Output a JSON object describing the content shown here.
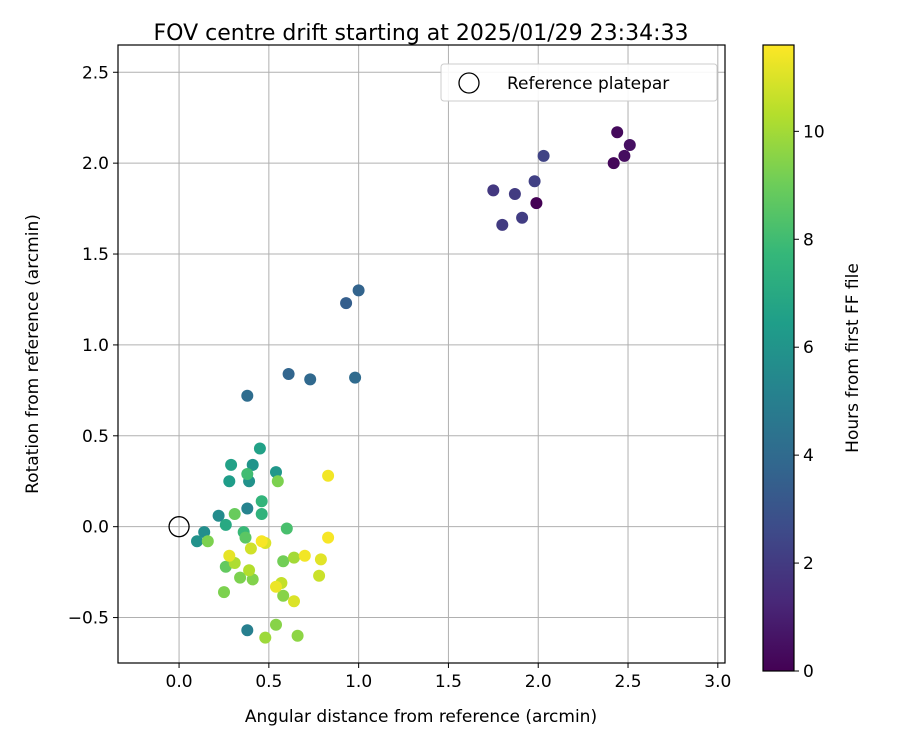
{
  "chart_data": {
    "type": "scatter",
    "title": "FOV centre drift starting at 2025/01/29 23:34:33",
    "xlabel": "Angular distance from reference (arcmin)",
    "ylabel": "Rotation from reference (arcmin)",
    "xlim": [
      -0.34,
      3.04
    ],
    "ylim": [
      -0.75,
      2.65
    ],
    "xticks": [
      "0.0",
      "0.5",
      "1.0",
      "1.5",
      "2.0",
      "2.5",
      "3.0"
    ],
    "xtick_values": [
      0,
      0.5,
      1,
      1.5,
      2,
      2.5,
      3
    ],
    "yticks": [
      "−0.5",
      "0.0",
      "0.5",
      "1.0",
      "1.5",
      "2.0",
      "2.5"
    ],
    "ytick_values": [
      -0.5,
      0,
      0.5,
      1,
      1.5,
      2,
      2.5
    ],
    "grid": true,
    "legend": {
      "position": "upper right",
      "entries": [
        "Reference platepar"
      ]
    },
    "colorbar": {
      "label": "Hours from first FF file",
      "colormap": "viridis",
      "range": [
        0,
        11.6
      ],
      "ticks": [
        "0",
        "2",
        "4",
        "6",
        "8",
        "10"
      ],
      "tick_values": [
        0,
        2,
        4,
        6,
        8,
        10
      ]
    },
    "reference_point": {
      "x": 0,
      "y": 0
    },
    "points": [
      {
        "x": 1.99,
        "y": 1.78,
        "h": 0.0
      },
      {
        "x": 2.42,
        "y": 2.0,
        "h": 0.2
      },
      {
        "x": 2.44,
        "y": 2.17,
        "h": 0.3
      },
      {
        "x": 2.48,
        "y": 2.04,
        "h": 0.4
      },
      {
        "x": 2.51,
        "y": 2.1,
        "h": 0.5
      },
      {
        "x": 1.75,
        "y": 1.85,
        "h": 1.9
      },
      {
        "x": 1.8,
        "y": 1.66,
        "h": 2.0
      },
      {
        "x": 1.87,
        "y": 1.83,
        "h": 2.0
      },
      {
        "x": 1.91,
        "y": 1.7,
        "h": 2.1
      },
      {
        "x": 1.98,
        "y": 1.9,
        "h": 2.2
      },
      {
        "x": 2.03,
        "y": 2.04,
        "h": 2.3
      },
      {
        "x": 0.93,
        "y": 1.23,
        "h": 3.5
      },
      {
        "x": 1.0,
        "y": 1.3,
        "h": 3.7
      },
      {
        "x": 0.61,
        "y": 0.84,
        "h": 3.8
      },
      {
        "x": 0.73,
        "y": 0.81,
        "h": 3.9
      },
      {
        "x": 0.98,
        "y": 0.82,
        "h": 4.0
      },
      {
        "x": 0.38,
        "y": 0.72,
        "h": 4.1
      },
      {
        "x": 0.38,
        "y": -0.57,
        "h": 5.0
      },
      {
        "x": 0.38,
        "y": 0.1,
        "h": 5.2
      },
      {
        "x": 0.22,
        "y": 0.06,
        "h": 5.6
      },
      {
        "x": 0.14,
        "y": -0.03,
        "h": 5.7
      },
      {
        "x": 0.1,
        "y": -0.08,
        "h": 5.9
      },
      {
        "x": 0.39,
        "y": 0.25,
        "h": 5.9
      },
      {
        "x": 0.41,
        "y": 0.34,
        "h": 6.0
      },
      {
        "x": 0.54,
        "y": 0.3,
        "h": 6.1
      },
      {
        "x": 0.28,
        "y": 0.25,
        "h": 6.4
      },
      {
        "x": 0.29,
        "y": 0.34,
        "h": 6.6
      },
      {
        "x": 0.45,
        "y": 0.43,
        "h": 6.6
      },
      {
        "x": 0.26,
        "y": 0.01,
        "h": 7.0
      },
      {
        "x": 0.46,
        "y": 0.07,
        "h": 7.5
      },
      {
        "x": 0.46,
        "y": 0.14,
        "h": 7.6
      },
      {
        "x": 0.36,
        "y": -0.03,
        "h": 7.8
      },
      {
        "x": 0.38,
        "y": 0.29,
        "h": 8.0
      },
      {
        "x": 0.6,
        "y": -0.01,
        "h": 8.2
      },
      {
        "x": 0.37,
        "y": -0.06,
        "h": 8.6
      },
      {
        "x": 0.26,
        "y": -0.22,
        "h": 8.8
      },
      {
        "x": 0.31,
        "y": 0.07,
        "h": 8.9
      },
      {
        "x": 0.58,
        "y": -0.19,
        "h": 9.1
      },
      {
        "x": 0.34,
        "y": -0.28,
        "h": 9.3
      },
      {
        "x": 0.25,
        "y": -0.36,
        "h": 9.3
      },
      {
        "x": 0.16,
        "y": -0.08,
        "h": 9.3
      },
      {
        "x": 0.55,
        "y": 0.25,
        "h": 9.3
      },
      {
        "x": 0.41,
        "y": -0.29,
        "h": 9.4
      },
      {
        "x": 0.58,
        "y": -0.38,
        "h": 9.5
      },
      {
        "x": 0.54,
        "y": -0.54,
        "h": 9.5
      },
      {
        "x": 0.66,
        "y": -0.6,
        "h": 9.6
      },
      {
        "x": 0.48,
        "y": -0.61,
        "h": 9.9
      },
      {
        "x": 0.64,
        "y": -0.17,
        "h": 10.0
      },
      {
        "x": 0.31,
        "y": -0.2,
        "h": 10.2
      },
      {
        "x": 0.39,
        "y": -0.24,
        "h": 10.3
      },
      {
        "x": 0.57,
        "y": -0.31,
        "h": 10.6
      },
      {
        "x": 0.78,
        "y": -0.27,
        "h": 10.7
      },
      {
        "x": 0.4,
        "y": -0.12,
        "h": 10.8
      },
      {
        "x": 0.48,
        "y": -0.09,
        "h": 11.0
      },
      {
        "x": 0.64,
        "y": -0.41,
        "h": 11.0
      },
      {
        "x": 0.79,
        "y": -0.18,
        "h": 11.1
      },
      {
        "x": 0.28,
        "y": -0.16,
        "h": 11.2
      },
      {
        "x": 0.54,
        "y": -0.33,
        "h": 11.3
      },
      {
        "x": 0.7,
        "y": -0.16,
        "h": 11.4
      },
      {
        "x": 0.83,
        "y": 0.28,
        "h": 11.4
      },
      {
        "x": 0.83,
        "y": -0.06,
        "h": 11.5
      },
      {
        "x": 0.46,
        "y": -0.08,
        "h": 11.5
      }
    ]
  }
}
